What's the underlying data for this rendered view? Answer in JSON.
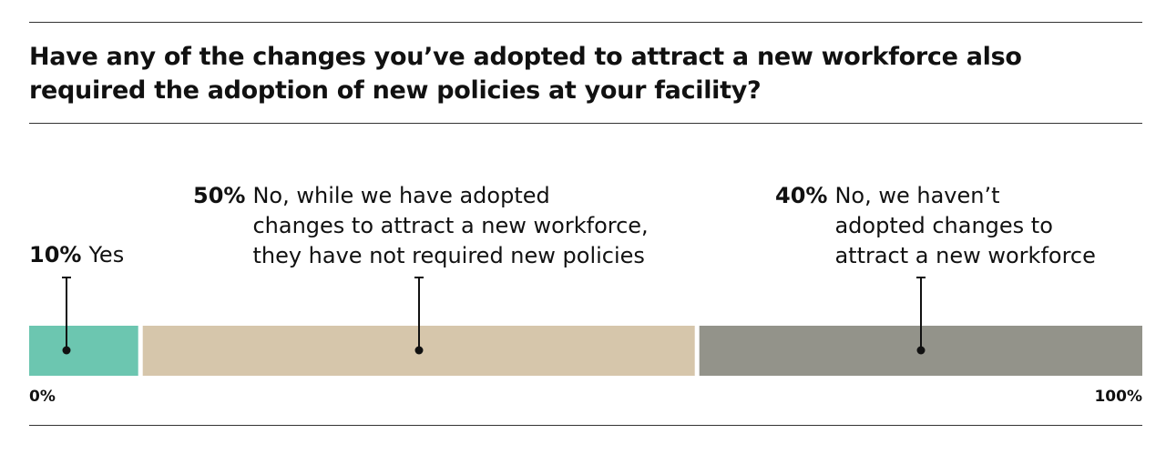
{
  "title": "Have any of the changes you’ve adopted to attract a new workforce also required the adoption of new policies at your facility?",
  "chart_data": {
    "type": "bar",
    "orientation": "horizontal-stacked",
    "segments": [
      {
        "value": 10,
        "value_label": "10%",
        "label_lines": [
          "Yes"
        ],
        "color": "#6cc6b0"
      },
      {
        "value": 50,
        "value_label": "50%",
        "label_lines": [
          "No, while we have adopted",
          "changes to attract a new workforce,",
          "they have not required new policies"
        ],
        "color": "#d6c6ab"
      },
      {
        "value": 40,
        "value_label": "40%",
        "label_lines": [
          "No, we haven’t",
          "adopted changes to",
          "attract a new workforce"
        ],
        "color": "#93938a"
      }
    ],
    "axis": {
      "min_label": "0%",
      "max_label": "100%"
    },
    "xlim": [
      0,
      100
    ]
  }
}
